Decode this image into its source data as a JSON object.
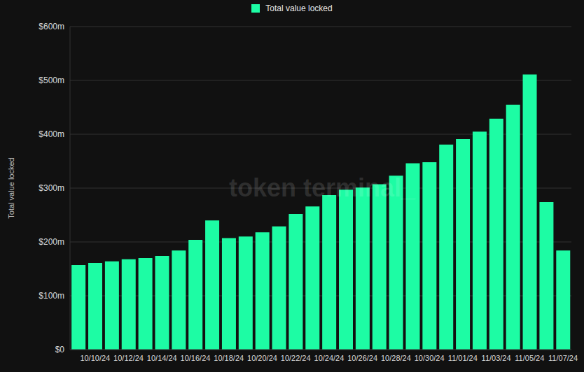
{
  "chart_data": {
    "type": "bar",
    "y_label": "Total value locked",
    "watermark": "token terminal_",
    "categories": [
      null,
      "10/10/24",
      null,
      "10/12/24",
      null,
      "10/14/24",
      null,
      "10/16/24",
      null,
      "10/18/24",
      null,
      "10/20/24",
      null,
      "10/22/24",
      null,
      "10/24/24",
      null,
      "10/26/24",
      null,
      "10/28/24",
      null,
      "10/30/24",
      null,
      "11/01/24",
      null,
      "11/03/24",
      null,
      "11/05/24",
      null,
      "11/07/24"
    ],
    "series": [
      {
        "name": "Total value locked",
        "color": "#1dfca4",
        "values": [
          157,
          161,
          164,
          168,
          170,
          174,
          184,
          204,
          240,
          207,
          210,
          218,
          229,
          252,
          266,
          287,
          297,
          301,
          307,
          323,
          346,
          348,
          381,
          391,
          405,
          429,
          455,
          511,
          274,
          184
        ]
      }
    ],
    "ylim": [
      0,
      600
    ],
    "yticks": [
      {
        "value": 0,
        "label": "$0"
      },
      {
        "value": 100,
        "label": "$100m"
      },
      {
        "value": 200,
        "label": "$200m"
      },
      {
        "value": 300,
        "label": "$300m"
      },
      {
        "value": 400,
        "label": "$400m"
      },
      {
        "value": 500,
        "label": "$500m"
      },
      {
        "value": 600,
        "label": "$600m"
      }
    ],
    "grid": true
  }
}
